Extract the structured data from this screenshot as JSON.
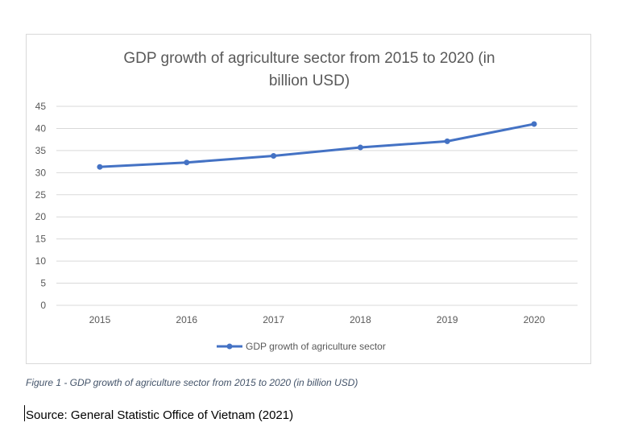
{
  "chart_data": {
    "type": "line",
    "title": "GDP growth of agriculture sector from 2015 to 2020 (in billion USD)",
    "title_lines": [
      "GDP growth of agriculture sector from 2015 to 2020 (in",
      "billion USD)"
    ],
    "categories": [
      "2015",
      "2016",
      "2017",
      "2018",
      "2019",
      "2020"
    ],
    "series": [
      {
        "name": "GDP growth of agriculture sector",
        "values": [
          31.3,
          32.3,
          33.8,
          35.7,
          37.1,
          41.0
        ]
      }
    ],
    "ylim": [
      0,
      45
    ],
    "yticks": [
      0,
      5,
      10,
      15,
      20,
      25,
      30,
      35,
      40,
      45
    ],
    "ytick_labels": [
      "0",
      "5",
      "10",
      "15",
      "20",
      "25",
      "30",
      "35",
      "40",
      "45"
    ],
    "grid": true,
    "legend_position": "bottom",
    "colors": {
      "series": "#4472c4",
      "grid": "#d9d9d9",
      "axis_text": "#595959"
    }
  },
  "caption": "Figure 1 - GDP growth of agriculture sector from 2015 to 2020 (in billion USD)",
  "source": "Source: General Statistic Office of Vietnam (2021)"
}
